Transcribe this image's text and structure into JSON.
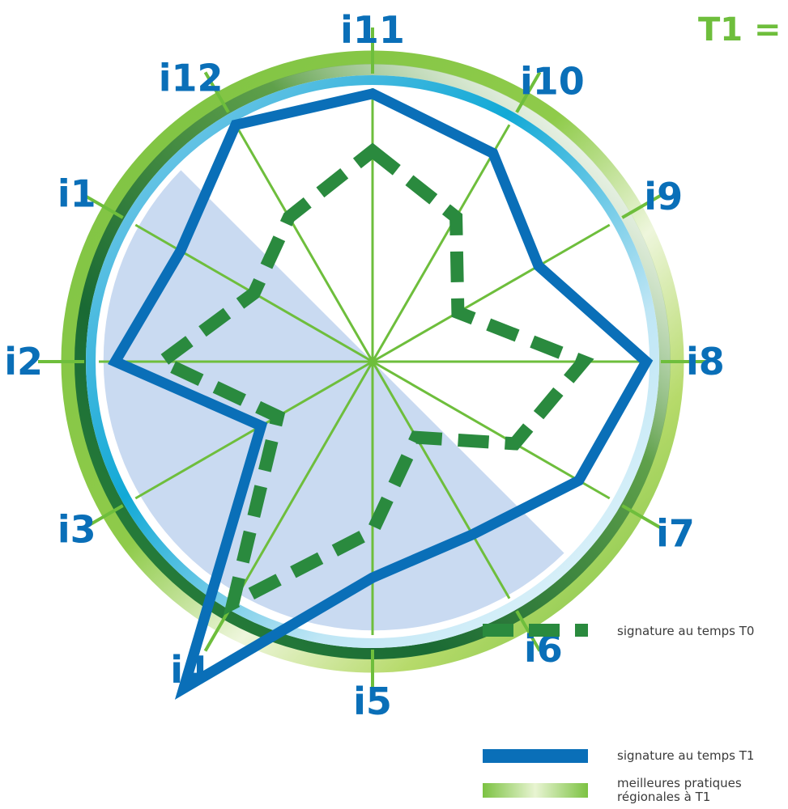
{
  "chart_data": {
    "type": "radar",
    "title": "",
    "axes": [
      "i11",
      "i10",
      "i9",
      "i8",
      "i7",
      "i6",
      "i5",
      "i4",
      "i3",
      "i2",
      "i1",
      "i12"
    ],
    "range": [
      0,
      1
    ],
    "series": [
      {
        "name": "signature au temps T0",
        "style": "dashed",
        "color": "#2a8a3e",
        "values": [
          0.77,
          0.61,
          0.36,
          0.77,
          0.6,
          0.32,
          0.62,
          1.02,
          0.4,
          0.77,
          0.5,
          0.61
        ]
      },
      {
        "name": "signature au temps T1",
        "style": "solid",
        "color": "#0a6fb8",
        "values": [
          0.98,
          0.88,
          0.7,
          1.0,
          0.87,
          0.73,
          0.79,
          1.38,
          0.47,
          0.94,
          0.81,
          1.0
        ]
      }
    ],
    "band": {
      "name": "meilleures pratiques régionales à T1"
    },
    "corner_label": "T1 =",
    "colors": {
      "axis_label": "#0a6fb8",
      "spoke": "#6ebe3c",
      "ring_outer": "#5fb548",
      "ring_dark": "#1f6e3a",
      "ring_inner": "#12a9d6",
      "sector": "#c9daf1",
      "corner": "#6ebe3c"
    },
    "legend": {
      "t0": "signature au temps T0",
      "t1": "signature au temps T1",
      "best_line1": "meilleures pratiques",
      "best_line2": "régionales à T1"
    }
  }
}
